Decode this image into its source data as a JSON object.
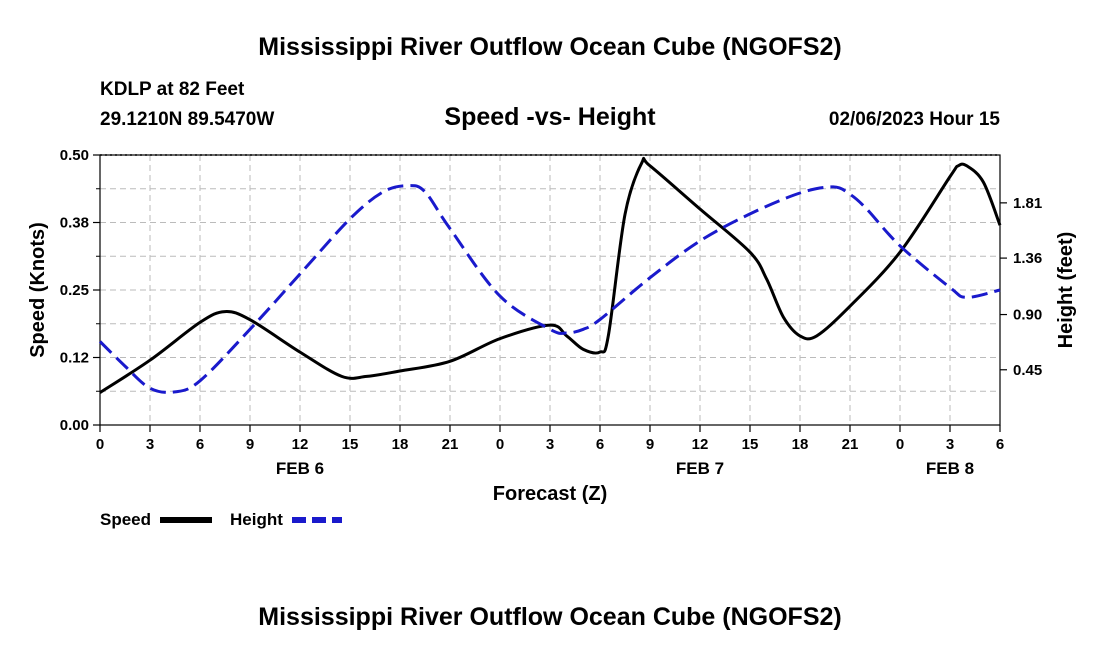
{
  "page_title": "Mississippi River Outflow Ocean Cube (NGOFS2)",
  "station": {
    "name": "KDLP at 82 Feet",
    "coords": "29.1210N  89.5470W"
  },
  "run_label": "02/06/2023 Hour 15",
  "footer_title": "Mississippi River Outflow Ocean Cube (NGOFS2)",
  "colors": {
    "speed": "#000000",
    "height": "#1a1acc",
    "grid": "#bbbbbb"
  },
  "chart_data": {
    "type": "line",
    "title": "Speed -vs- Height",
    "xlabel": "Forecast (Z)",
    "ylabel": "Speed (Knots)",
    "y2label": "Height (feet)",
    "xlim": [
      0,
      54
    ],
    "ylim": [
      0,
      0.5
    ],
    "y2lim": [
      0,
      2.2
    ],
    "x_ticks": [
      0,
      3,
      6,
      9,
      12,
      15,
      18,
      21,
      24,
      27,
      30,
      33,
      36,
      39,
      42,
      45,
      48,
      51,
      54
    ],
    "x_tick_labels": [
      "0",
      "3",
      "6",
      "9",
      "12",
      "15",
      "18",
      "21",
      "0",
      "3",
      "6",
      "9",
      "12",
      "15",
      "18",
      "21",
      "0",
      "3",
      "6"
    ],
    "y_ticks": [
      0.0,
      0.125,
      0.25,
      0.375,
      0.5
    ],
    "y_tick_labels": [
      "0.00",
      "0.12",
      "0.25",
      "0.38",
      "0.50"
    ],
    "y2_ticks": [
      0.45,
      0.9,
      1.36,
      1.81
    ],
    "y2_tick_labels": [
      "0.45",
      "0.90",
      "1.36",
      "1.81"
    ],
    "day_labels": [
      {
        "x": 12,
        "label": "FEB 6"
      },
      {
        "x": 36,
        "label": "FEB 7"
      },
      {
        "x": 51,
        "label": "FEB 8"
      }
    ],
    "grid": true,
    "legend": [
      "Speed",
      "Height"
    ],
    "series": [
      {
        "name": "Speed",
        "axis": "left",
        "style": "solid",
        "x": [
          0,
          3,
          6,
          7.5,
          9,
          12,
          14.5,
          16,
          18,
          21,
          24,
          27,
          28,
          29,
          30,
          30.5,
          31.5,
          32.5,
          33,
          36,
          39,
          40,
          41,
          42,
          43,
          45,
          48,
          51,
          51.5,
          52,
          53,
          54
        ],
        "y": [
          0.06,
          0.12,
          0.19,
          0.21,
          0.195,
          0.135,
          0.09,
          0.09,
          0.1,
          0.118,
          0.16,
          0.185,
          0.165,
          0.14,
          0.135,
          0.165,
          0.39,
          0.485,
          0.48,
          0.4,
          0.32,
          0.27,
          0.2,
          0.165,
          0.165,
          0.22,
          0.32,
          0.46,
          0.48,
          0.48,
          0.45,
          0.37
        ]
      },
      {
        "name": "Height",
        "axis": "right",
        "style": "dashed",
        "x": [
          0,
          1.5,
          3,
          4.5,
          6,
          9,
          12,
          15,
          17,
          18.5,
          19.5,
          21,
          24,
          27,
          28,
          29,
          30,
          33,
          36,
          39,
          42,
          44,
          45,
          46,
          48,
          51,
          52,
          54
        ],
        "y": [
          0.68,
          0.48,
          0.3,
          0.27,
          0.36,
          0.78,
          1.23,
          1.68,
          1.9,
          1.95,
          1.9,
          1.6,
          1.05,
          0.78,
          0.75,
          0.78,
          0.86,
          1.2,
          1.5,
          1.72,
          1.89,
          1.94,
          1.88,
          1.76,
          1.46,
          1.12,
          1.04,
          1.1
        ]
      }
    ]
  }
}
